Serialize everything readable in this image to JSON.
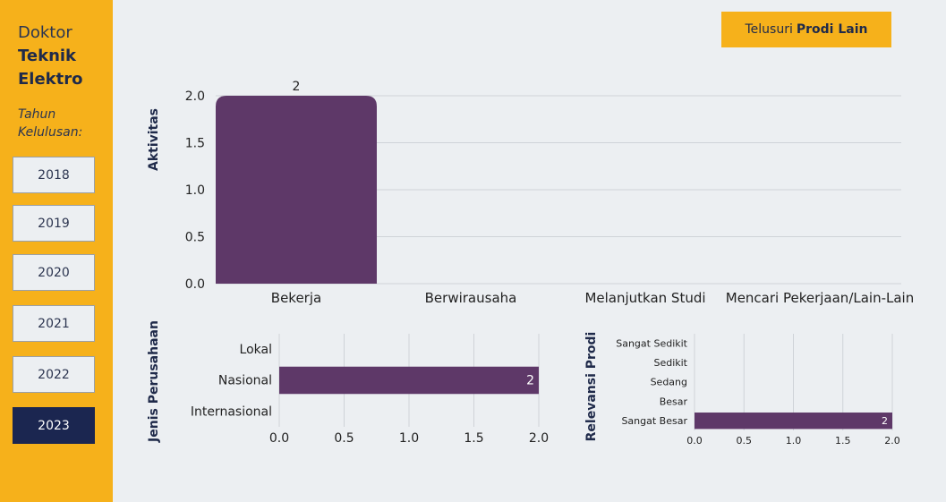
{
  "sidebar": {
    "prodi_prefix": "Doktor",
    "prodi_name_1": "Teknik",
    "prodi_name_2": "Elektro",
    "tahun_label_1": "Tahun",
    "tahun_label_2": "Kelulusan:",
    "years": [
      "2018",
      "2019",
      "2020",
      "2021",
      "2022",
      "2023"
    ],
    "active_year": "2023"
  },
  "header": {
    "telusuri_prefix": "Telusuri",
    "telusuri_bold": "Prodi Lain"
  },
  "colors": {
    "bar": "#5e3868",
    "accent": "#f6b11b",
    "navy": "#1b2650"
  },
  "chart_data": [
    {
      "type": "bar",
      "orientation": "vertical",
      "title": "",
      "ylabel": "Aktivitas",
      "xlabel": "",
      "categories": [
        "Bekerja",
        "Berwirausaha",
        "Melanjutkan Studi",
        "Mencari Pekerjaan/Lain-Lain"
      ],
      "values": [
        2,
        0,
        0,
        0
      ],
      "data_labels": [
        "2",
        "",
        "",
        ""
      ],
      "ylim": [
        0,
        2
      ],
      "yticks": [
        "0.0",
        "0.5",
        "1.0",
        "1.5",
        "2.0"
      ],
      "grid": true
    },
    {
      "type": "bar",
      "orientation": "horizontal",
      "ylabel": "Jenis Perusahaan",
      "categories": [
        "Lokal",
        "Nasional",
        "Internasional"
      ],
      "values": [
        0,
        2,
        0
      ],
      "data_labels": [
        "",
        "2",
        ""
      ],
      "xlim": [
        0,
        2
      ],
      "xticks": [
        "0.0",
        "0.5",
        "1.0",
        "1.5",
        "2.0"
      ],
      "grid": true
    },
    {
      "type": "bar",
      "orientation": "horizontal",
      "ylabel": "Relevansi Prodi",
      "categories": [
        "Sangat Sedikit",
        "Sedikit",
        "Sedang",
        "Besar",
        "Sangat Besar"
      ],
      "values": [
        0,
        0,
        0,
        0,
        2
      ],
      "data_labels": [
        "",
        "",
        "",
        "",
        "2"
      ],
      "xlim": [
        0,
        2
      ],
      "xticks": [
        "0.0",
        "0.5",
        "1.0",
        "1.5",
        "2.0"
      ],
      "grid": true
    }
  ]
}
